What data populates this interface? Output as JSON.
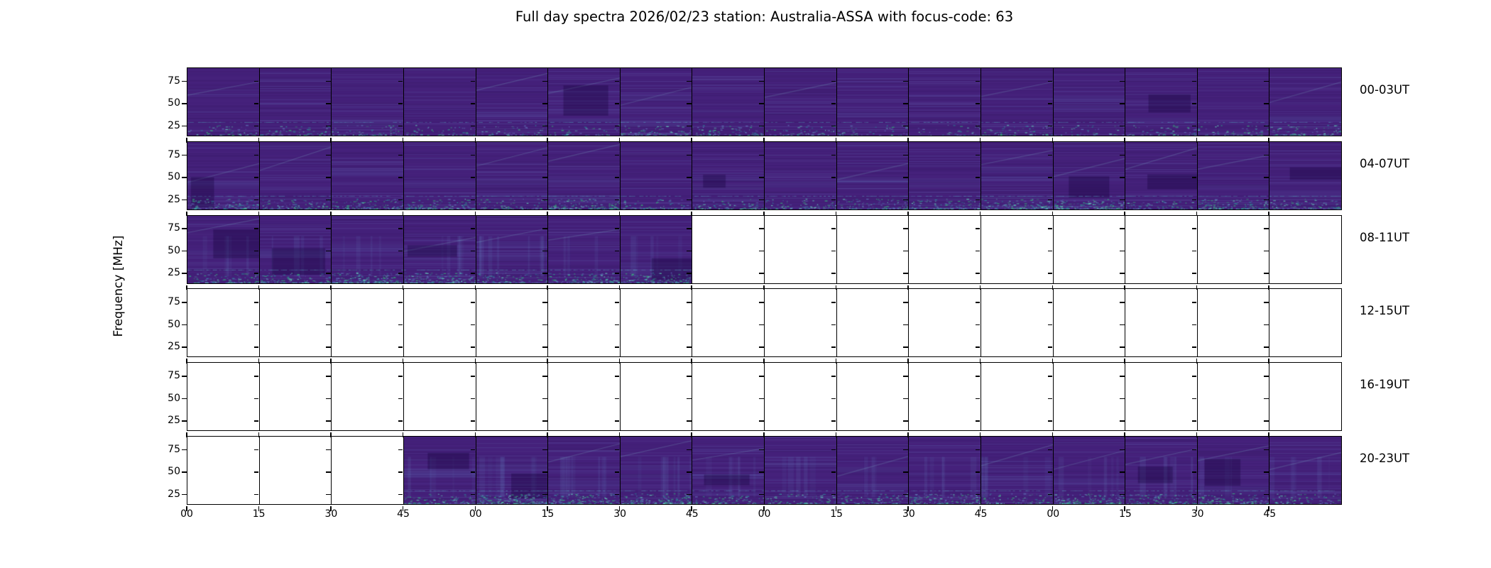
{
  "title": "Full day spectra 2026/02/23 station: Australia-ASSA with focus-code: 63",
  "ylabel": "Frequency [MHz]",
  "yticks": [
    "75",
    "50",
    "25"
  ],
  "xticks": [
    "00",
    "15",
    "30",
    "45",
    "00",
    "15",
    "30",
    "45",
    "00",
    "15",
    "30",
    "45",
    "00",
    "15",
    "30",
    "45"
  ],
  "rows": [
    {
      "label": "00-03UT",
      "filled": [
        1,
        1,
        1,
        1,
        1,
        1,
        1,
        1,
        1,
        1,
        1,
        1,
        1,
        1,
        1,
        1
      ]
    },
    {
      "label": "04-07UT",
      "filled": [
        1,
        1,
        1,
        1,
        1,
        1,
        1,
        1,
        1,
        1,
        1,
        1,
        1,
        1,
        1,
        1
      ]
    },
    {
      "label": "08-11UT",
      "filled": [
        1,
        1,
        1,
        1,
        1,
        1,
        1,
        0,
        0,
        0,
        0,
        0,
        0,
        0,
        0,
        0
      ]
    },
    {
      "label": "12-15UT",
      "filled": [
        0,
        0,
        0,
        0,
        0,
        0,
        0,
        0,
        0,
        0,
        0,
        0,
        0,
        0,
        0,
        0
      ]
    },
    {
      "label": "16-19UT",
      "filled": [
        0,
        0,
        0,
        0,
        0,
        0,
        0,
        0,
        0,
        0,
        0,
        0,
        0,
        0,
        0,
        0
      ]
    },
    {
      "label": "20-23UT",
      "filled": [
        0,
        0,
        0,
        1,
        1,
        1,
        1,
        1,
        1,
        1,
        1,
        1,
        1,
        1,
        1,
        1
      ]
    }
  ],
  "colors": {
    "background": "#ffffff",
    "axis": "#000000",
    "text": "#000000",
    "spectrogram_base": "#45217b",
    "spectrogram_dark": "#371866",
    "streak_blue": "#4a55a2",
    "streak_light": "#6277bc",
    "speckle_teal": "#2a8f9c",
    "speckle_green": "#35b779",
    "speckle_bright": "#63d0b8"
  },
  "chart_data": {
    "type": "heatmap",
    "title": "Full day spectra 2026/02/23 station: Australia-ASSA with focus-code: 63",
    "station": "Australia-ASSA",
    "date": "2026/02/23",
    "focus_code": "63",
    "ylabel": "Frequency [MHz]",
    "yticks_mhz": [
      25,
      50,
      75
    ],
    "x_tick_labels_minutes": [
      "00",
      "15",
      "30",
      "45"
    ],
    "segment_minutes": 15,
    "segments_per_row": 16,
    "hours_per_row": 4,
    "colormap": "viridis",
    "grid": "off",
    "rows": [
      {
        "label": "00-03UT",
        "hours_ut": "00:00-04:00",
        "data_coverage": "full"
      },
      {
        "label": "04-07UT",
        "hours_ut": "04:00-08:00",
        "data_coverage": "full"
      },
      {
        "label": "08-11UT",
        "hours_ut": "08:00-12:00",
        "data_coverage": "08:00-09:45"
      },
      {
        "label": "12-15UT",
        "hours_ut": "12:00-16:00",
        "data_coverage": "none"
      },
      {
        "label": "16-19UT",
        "hours_ut": "16:00-20:00",
        "data_coverage": "none"
      },
      {
        "label": "20-23UT",
        "hours_ut": "20:00-24:00",
        "data_coverage": "20:45-24:00"
      }
    ]
  }
}
